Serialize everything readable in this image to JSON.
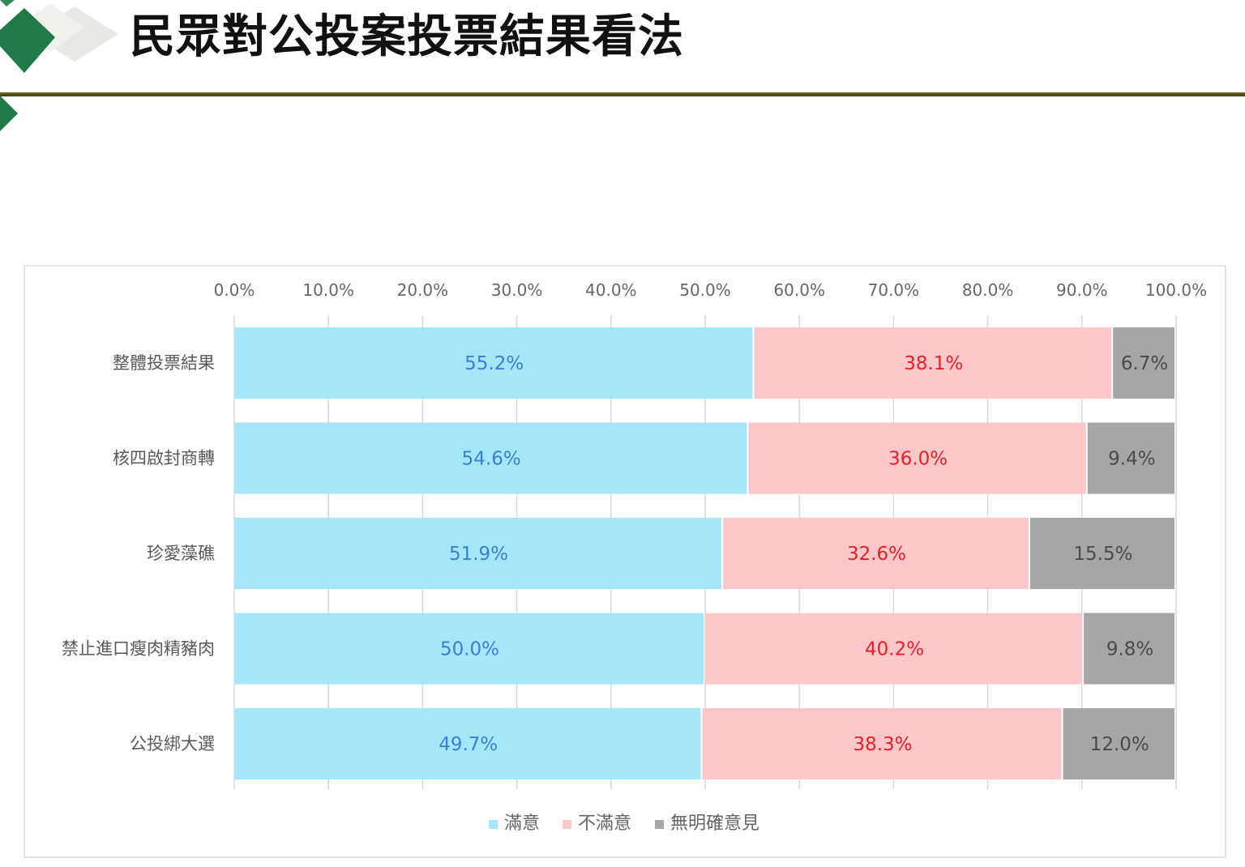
{
  "slide": {
    "title": "民眾對公投案投票結果看法"
  },
  "chart_data": {
    "type": "bar",
    "orientation": "horizontal",
    "stacked": true,
    "categories": [
      "整體投票結果",
      "核四啟封商轉",
      "珍愛藻礁",
      "禁止進口瘦肉精豬肉",
      "公投綁大選"
    ],
    "series": [
      {
        "name": "滿意",
        "values": [
          55.2,
          54.6,
          51.9,
          50.0,
          49.7
        ],
        "color": "#a6e6fb",
        "label_color": "#3a7fd5"
      },
      {
        "name": "不滿意",
        "values": [
          38.1,
          36.0,
          32.6,
          40.2,
          38.3
        ],
        "color": "#fdc8ca",
        "label_color": "#ee1c25"
      },
      {
        "name": "無明確意見",
        "values": [
          6.7,
          9.4,
          15.5,
          9.8,
          12.0
        ],
        "color": "#a6a6a6",
        "label_color": "#4a4a4a"
      }
    ],
    "xlim": [
      0,
      100
    ],
    "x_ticks": [
      "0.0%",
      "10.0%",
      "20.0%",
      "30.0%",
      "40.0%",
      "50.0%",
      "60.0%",
      "70.0%",
      "80.0%",
      "90.0%",
      "100.0%"
    ],
    "x_axis_position": "top",
    "value_suffix": "%",
    "grid": true,
    "legend_position": "bottom"
  }
}
